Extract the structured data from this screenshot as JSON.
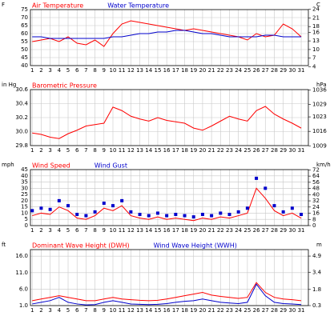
{
  "chart_data": [
    {
      "type": "line",
      "y_label": "F",
      "y2_label": "C",
      "x": [
        1,
        2,
        3,
        4,
        5,
        6,
        7,
        8,
        9,
        10,
        11,
        12,
        13,
        14,
        15,
        16,
        17,
        18,
        19,
        20,
        21,
        22,
        23,
        24,
        25,
        26,
        27,
        28,
        29,
        30,
        31
      ],
      "xlim": [
        0.8,
        31.8
      ],
      "xticks": [
        1,
        2,
        3,
        4,
        5,
        6,
        7,
        8,
        9,
        10,
        11,
        12,
        13,
        14,
        15,
        16,
        17,
        18,
        19,
        20,
        21,
        22,
        23,
        24,
        25,
        26,
        27,
        28,
        29,
        30,
        31
      ],
      "ylim": [
        40,
        75
      ],
      "yticks": [
        40,
        45,
        50,
        55,
        60,
        65,
        70,
        75
      ],
      "y2lim": [
        4.4,
        23.9
      ],
      "y2ticks": [
        4,
        7,
        10,
        13,
        16,
        18,
        21,
        24
      ],
      "grid": true,
      "series": [
        {
          "name": "Air Temperature",
          "color": "#ff0000",
          "values": [
            55,
            56,
            57,
            55,
            58,
            54,
            53,
            56,
            52,
            60,
            66,
            68,
            67,
            66,
            65,
            64,
            63,
            62,
            63,
            62,
            61,
            60,
            59,
            58,
            56,
            60,
            58,
            59,
            66,
            63,
            58
          ]
        },
        {
          "name": "Water Temperature",
          "color": "#0000cc",
          "values": [
            58,
            58,
            57,
            57,
            57,
            57,
            57,
            57,
            57,
            58,
            58,
            59,
            60,
            60,
            61,
            61,
            62,
            62,
            61,
            60,
            60,
            59,
            58,
            58,
            58,
            58,
            59,
            59,
            58,
            58,
            58
          ]
        }
      ]
    },
    {
      "type": "line",
      "y_label": "in Hg",
      "y2_label": "hPa",
      "x": [
        1,
        2,
        3,
        4,
        5,
        6,
        7,
        8,
        9,
        10,
        11,
        12,
        13,
        14,
        15,
        16,
        17,
        18,
        19,
        20,
        21,
        22,
        23,
        24,
        25,
        26,
        27,
        28,
        29,
        30,
        31
      ],
      "xlim": [
        0.8,
        31.8
      ],
      "xticks": [
        1,
        2,
        3,
        4,
        5,
        6,
        7,
        8,
        9,
        10,
        11,
        12,
        13,
        14,
        15,
        16,
        17,
        18,
        19,
        20,
        21,
        22,
        23,
        24,
        25,
        26,
        27,
        28,
        29,
        30,
        31
      ],
      "ylim": [
        29.8,
        30.6
      ],
      "yticks": [
        29.8,
        {
          "value": 30.0,
          "label": "30.0"
        },
        30.2,
        30.4,
        30.6
      ],
      "y2lim": [
        1009.1,
        1036.2
      ],
      "y2ticks": [
        1009,
        1016,
        1023,
        1029,
        1036
      ],
      "grid": true,
      "series": [
        {
          "name": "Barometric Pressure",
          "color": "#ff0000",
          "values": [
            29.98,
            29.96,
            29.92,
            29.9,
            29.97,
            30.02,
            30.08,
            30.1,
            30.12,
            30.35,
            30.3,
            30.22,
            30.18,
            30.15,
            30.2,
            30.16,
            30.14,
            30.12,
            30.05,
            30.02,
            30.08,
            30.15,
            30.22,
            30.18,
            30.15,
            30.3,
            30.36,
            30.25,
            30.18,
            30.12,
            30.05
          ]
        }
      ]
    },
    {
      "type": "line",
      "y_label": "mph",
      "y2_label": "km/h",
      "x": [
        1,
        2,
        3,
        4,
        5,
        6,
        7,
        8,
        9,
        10,
        11,
        12,
        13,
        14,
        15,
        16,
        17,
        18,
        19,
        20,
        21,
        22,
        23,
        24,
        25,
        26,
        27,
        28,
        29,
        30,
        31
      ],
      "xlim": [
        0.8,
        31.8
      ],
      "xticks": [
        1,
        2,
        3,
        4,
        5,
        6,
        7,
        8,
        9,
        10,
        11,
        12,
        13,
        14,
        15,
        16,
        17,
        18,
        19,
        20,
        21,
        22,
        23,
        24,
        25,
        26,
        27,
        28,
        29,
        30,
        31
      ],
      "ylim": [
        0,
        45
      ],
      "yticks": [
        0,
        5,
        10,
        15,
        20,
        25,
        30,
        35,
        40,
        45
      ],
      "y2lim": [
        0,
        72.4
      ],
      "y2ticks": [
        0,
        8,
        16,
        24,
        32,
        40,
        48,
        56,
        64,
        72
      ],
      "grid": true,
      "series": [
        {
          "name": "Wind Speed",
          "color": "#ff0000",
          "values": [
            8,
            10,
            9,
            15,
            12,
            6,
            5,
            8,
            14,
            12,
            16,
            8,
            6,
            5,
            7,
            5,
            6,
            5,
            4,
            6,
            5,
            7,
            6,
            8,
            10,
            30,
            22,
            12,
            8,
            10,
            6
          ]
        },
        {
          "name": "Wind Gust",
          "color": "#0000cc",
          "marker": "square",
          "values": [
            12,
            14,
            13,
            20,
            16,
            9,
            8,
            11,
            18,
            16,
            20,
            11,
            9,
            8,
            10,
            8,
            9,
            8,
            7,
            9,
            8,
            10,
            9,
            11,
            14,
            38,
            30,
            16,
            11,
            14,
            9
          ]
        }
      ]
    },
    {
      "type": "line",
      "y_label": "ft",
      "y2_label": "m",
      "x": [
        1,
        2,
        3,
        4,
        5,
        6,
        7,
        8,
        9,
        10,
        11,
        12,
        13,
        14,
        15,
        16,
        17,
        18,
        19,
        20,
        21,
        22,
        23,
        24,
        25,
        26,
        27,
        28,
        29,
        30,
        31
      ],
      "xlim": [
        0.8,
        31.8
      ],
      "xticks": [
        1,
        2,
        3,
        4,
        5,
        6,
        7,
        8,
        9,
        10,
        11,
        12,
        13,
        14,
        15,
        16,
        17,
        18,
        19,
        20,
        21,
        22,
        23,
        24,
        25,
        26,
        27,
        28,
        29,
        30,
        31
      ],
      "ylim": [
        1,
        18
      ],
      "yticks": [
        {
          "value": 1,
          "label": "1.0"
        },
        {
          "value": 6,
          "label": "6.0"
        },
        {
          "value": 11,
          "label": "11.0"
        },
        {
          "value": 16,
          "label": "16.0"
        }
      ],
      "y2lim": [
        0.3,
        5.5
      ],
      "y2ticks": [
        0.3,
        1.8,
        3.4,
        4.9
      ],
      "grid": true,
      "series": [
        {
          "name": "Dominant Wave Height (DWH)",
          "color": "#ff0000",
          "values": [
            2.5,
            3,
            3.5,
            4,
            3.5,
            3,
            2.5,
            2.5,
            3,
            3.5,
            3,
            2.8,
            2.6,
            2.5,
            2.6,
            3,
            3.5,
            4,
            4.5,
            5,
            4.2,
            3.8,
            3.5,
            3.2,
            3.5,
            8,
            5,
            3.5,
            3,
            2.8,
            2.5
          ]
        },
        {
          "name": "Wind Wave Height (WWH)",
          "color": "#0000cc",
          "values": [
            1.5,
            2,
            2.5,
            3.5,
            2,
            1.5,
            1.2,
            1.3,
            2,
            2.5,
            2,
            1.5,
            1.4,
            1.3,
            1.4,
            1.6,
            2,
            2.3,
            2.5,
            3,
            2.5,
            2,
            1.8,
            1.6,
            2,
            7.5,
            4,
            2,
            1.6,
            1.5,
            1.3
          ]
        }
      ]
    }
  ]
}
